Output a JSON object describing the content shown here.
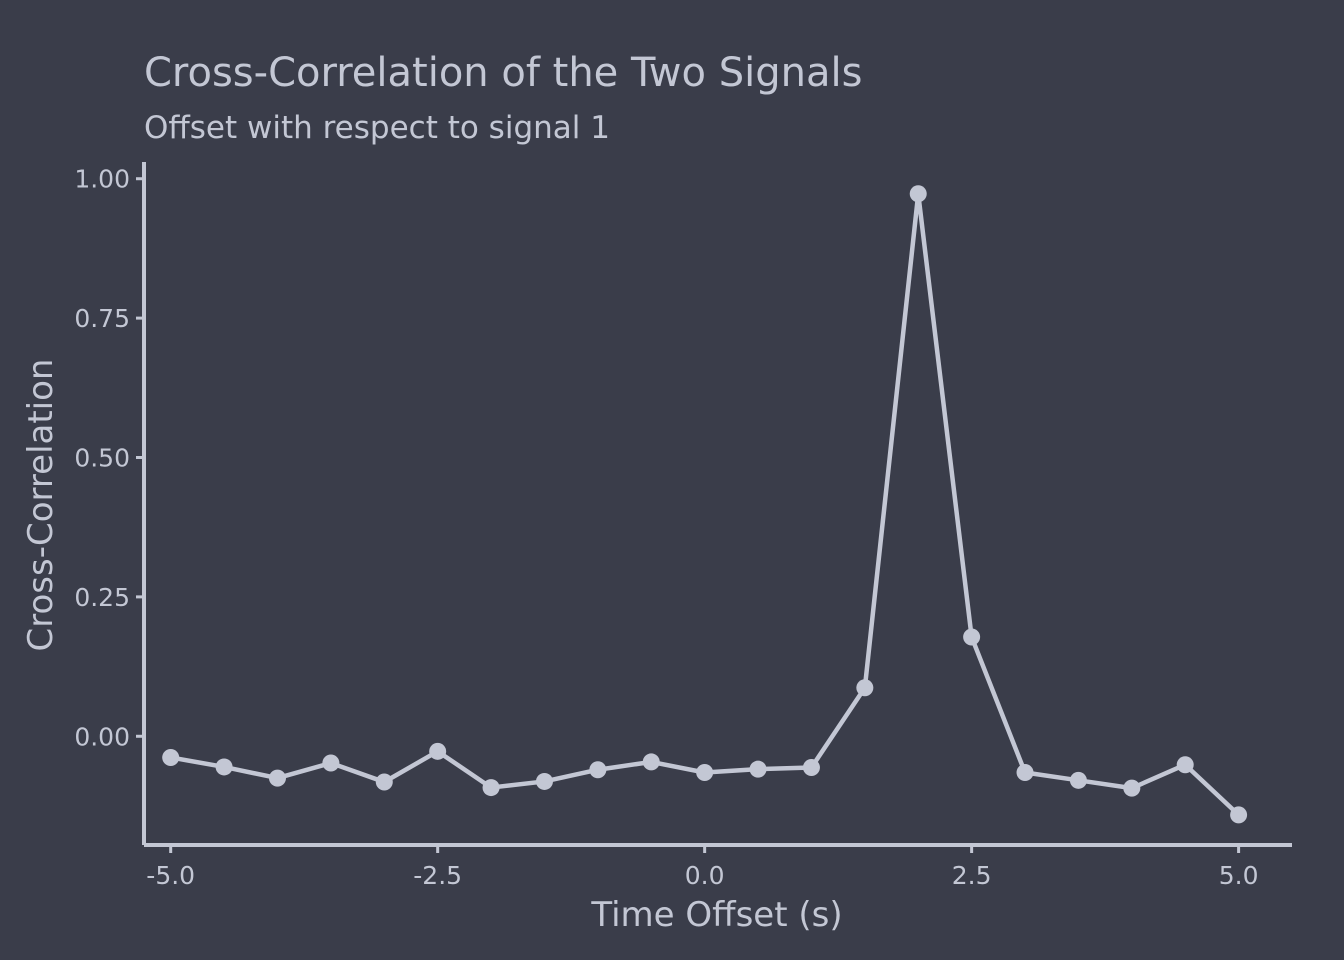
{
  "chart_data": {
    "type": "line",
    "title": "Cross-Correlation of the Two Signals",
    "subtitle": "Offset with respect to signal 1",
    "xlabel": "Time Offset (s)",
    "ylabel": "Cross-Correlation",
    "xlim": [
      -5.25,
      5.5
    ],
    "ylim": [
      -0.195,
      1.03
    ],
    "x_ticks": [
      -5.0,
      -2.5,
      0.0,
      2.5,
      5.0
    ],
    "x_tick_labels": [
      "-5.0",
      "-2.5",
      "0.0",
      "2.5",
      "5.0"
    ],
    "y_ticks": [
      0.0,
      0.25,
      0.5,
      0.75,
      1.0
    ],
    "y_tick_labels": [
      "0.00",
      "0.25",
      "0.50",
      "0.75",
      "1.00"
    ],
    "grid": false,
    "x": [
      -5.0,
      -4.5,
      -4.0,
      -3.5,
      -3.0,
      -2.5,
      -2.0,
      -1.5,
      -1.0,
      -0.5,
      0.0,
      0.5,
      1.0,
      1.5,
      2.0,
      2.5,
      3.0,
      3.5,
      4.0,
      4.5,
      5.0
    ],
    "series": [
      {
        "values": [
          -0.038,
          -0.055,
          -0.075,
          -0.048,
          -0.082,
          -0.027,
          -0.092,
          -0.081,
          -0.06,
          -0.046,
          -0.065,
          -0.059,
          -0.056,
          0.087,
          0.973,
          0.178,
          -0.065,
          -0.079,
          -0.093,
          -0.051,
          -0.141
        ]
      }
    ],
    "colors": {
      "background": "#3a3d4a",
      "foreground": "#c3c7d4"
    }
  }
}
